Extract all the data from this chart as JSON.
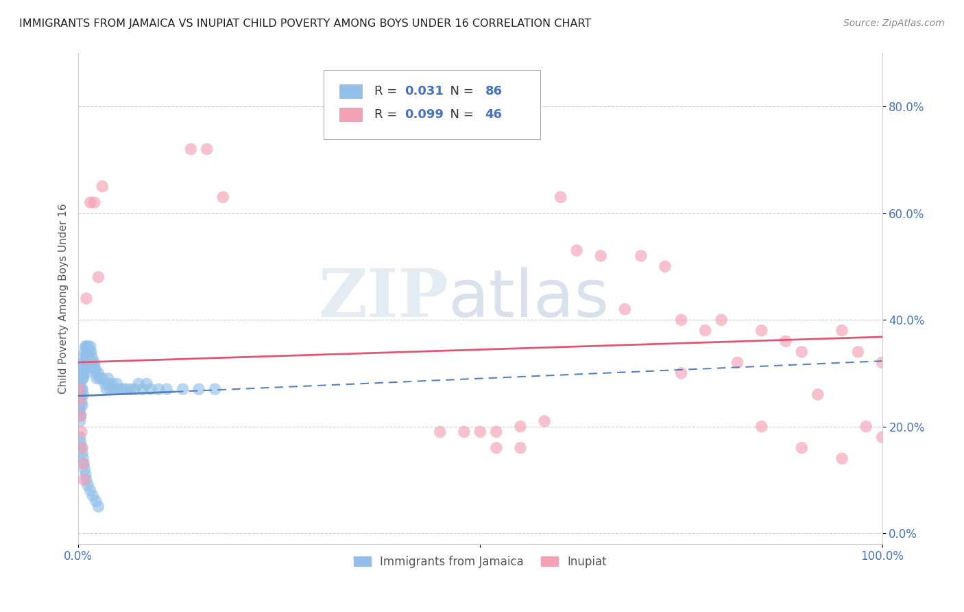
{
  "title": "IMMIGRANTS FROM JAMAICA VS INUPIAT CHILD POVERTY AMONG BOYS UNDER 16 CORRELATION CHART",
  "source": "Source: ZipAtlas.com",
  "ylabel": "Child Poverty Among Boys Under 16",
  "legend_label_1": "Immigrants from Jamaica",
  "legend_label_2": "Inupiat",
  "R1": 0.031,
  "N1": 86,
  "R2": 0.099,
  "N2": 46,
  "color_blue": "#92C0E8",
  "color_pink": "#F4A0B5",
  "color_blue_line": "#5580C0",
  "color_pink_line": "#E05575",
  "ytick_vals": [
    0.0,
    0.2,
    0.4,
    0.6,
    0.8
  ],
  "ytick_labels": [
    "0.0%",
    "20.0%",
    "40.0%",
    "60.0%",
    "80.0%"
  ],
  "xlim": [
    0.0,
    1.0
  ],
  "ylim": [
    -0.02,
    0.9
  ],
  "watermark_zip": "ZIP",
  "watermark_atlas": "atlas",
  "grid_color": "#cccccc",
  "title_color": "#222222",
  "tick_label_color": "#4472C4",
  "source_color": "#888888",
  "ylabel_color": "#555555",
  "blue_x": [
    0.001,
    0.001,
    0.001,
    0.001,
    0.002,
    0.002,
    0.002,
    0.002,
    0.002,
    0.003,
    0.003,
    0.003,
    0.003,
    0.003,
    0.004,
    0.004,
    0.004,
    0.005,
    0.005,
    0.005,
    0.005,
    0.006,
    0.006,
    0.006,
    0.007,
    0.007,
    0.008,
    0.008,
    0.009,
    0.009,
    0.01,
    0.01,
    0.01,
    0.011,
    0.012,
    0.012,
    0.013,
    0.014,
    0.015,
    0.016,
    0.017,
    0.018,
    0.019,
    0.02,
    0.021,
    0.022,
    0.023,
    0.025,
    0.027,
    0.03,
    0.033,
    0.035,
    0.037,
    0.038,
    0.04,
    0.042,
    0.045,
    0.048,
    0.05,
    0.055,
    0.06,
    0.065,
    0.07,
    0.075,
    0.08,
    0.085,
    0.09,
    0.1,
    0.11,
    0.13,
    0.15,
    0.17,
    0.002,
    0.003,
    0.004,
    0.005,
    0.006,
    0.007,
    0.008,
    0.009,
    0.01,
    0.012,
    0.015,
    0.018,
    0.022,
    0.025
  ],
  "blue_y": [
    0.27,
    0.25,
    0.23,
    0.22,
    0.28,
    0.26,
    0.25,
    0.23,
    0.21,
    0.29,
    0.27,
    0.26,
    0.24,
    0.22,
    0.3,
    0.27,
    0.25,
    0.31,
    0.29,
    0.27,
    0.24,
    0.32,
    0.29,
    0.26,
    0.33,
    0.3,
    0.34,
    0.31,
    0.35,
    0.32,
    0.35,
    0.33,
    0.3,
    0.34,
    0.35,
    0.32,
    0.33,
    0.34,
    0.35,
    0.34,
    0.33,
    0.32,
    0.31,
    0.32,
    0.31,
    0.3,
    0.29,
    0.3,
    0.29,
    0.29,
    0.28,
    0.27,
    0.29,
    0.28,
    0.27,
    0.28,
    0.27,
    0.28,
    0.27,
    0.27,
    0.27,
    0.27,
    0.27,
    0.28,
    0.27,
    0.28,
    0.27,
    0.27,
    0.27,
    0.27,
    0.27,
    0.27,
    0.18,
    0.17,
    0.16,
    0.15,
    0.14,
    0.13,
    0.12,
    0.11,
    0.1,
    0.09,
    0.08,
    0.07,
    0.06,
    0.05
  ],
  "pink_x": [
    0.001,
    0.002,
    0.003,
    0.004,
    0.005,
    0.006,
    0.007,
    0.01,
    0.015,
    0.02,
    0.025,
    0.03,
    0.14,
    0.16,
    0.18,
    0.5,
    0.52,
    0.55,
    0.58,
    0.6,
    0.62,
    0.65,
    0.68,
    0.7,
    0.73,
    0.75,
    0.78,
    0.8,
    0.82,
    0.85,
    0.88,
    0.9,
    0.92,
    0.95,
    0.97,
    1.0,
    0.45,
    0.48,
    0.52,
    0.55,
    0.75,
    0.85,
    0.9,
    0.95,
    1.0,
    0.98
  ],
  "pink_y": [
    0.27,
    0.25,
    0.22,
    0.19,
    0.16,
    0.13,
    0.1,
    0.44,
    0.62,
    0.62,
    0.48,
    0.65,
    0.72,
    0.72,
    0.63,
    0.19,
    0.19,
    0.2,
    0.21,
    0.63,
    0.53,
    0.52,
    0.42,
    0.52,
    0.5,
    0.4,
    0.38,
    0.4,
    0.32,
    0.38,
    0.36,
    0.34,
    0.26,
    0.38,
    0.34,
    0.32,
    0.19,
    0.19,
    0.16,
    0.16,
    0.3,
    0.2,
    0.16,
    0.14,
    0.18,
    0.2
  ]
}
